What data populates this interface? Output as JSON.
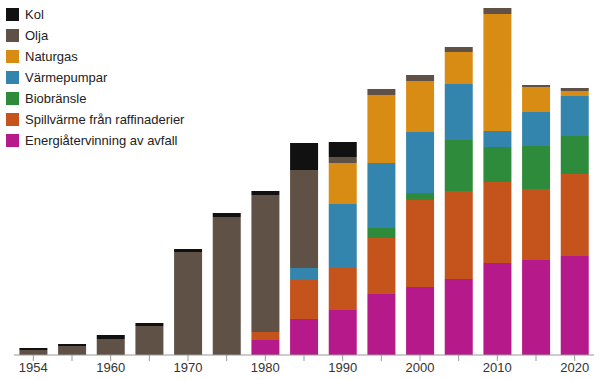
{
  "chart_data": {
    "type": "bar",
    "stacked": true,
    "tick_labels": "x",
    "categories": [
      "1954",
      null,
      "1960",
      null,
      "1970",
      null,
      "1980",
      null,
      "1990",
      null,
      "2000",
      null,
      "2010",
      null,
      "2020"
    ],
    "ylim": [
      0,
      350
    ],
    "legend": "top-left",
    "series": [
      {
        "name": "Kol",
        "color": "#111111",
        "values": [
          2,
          2,
          4,
          3,
          3,
          4,
          4,
          27,
          15,
          0,
          0,
          0,
          0,
          0,
          0
        ]
      },
      {
        "name": "Olja",
        "color": "#5f5145",
        "values": [
          5,
          9,
          16,
          29,
          103,
          138,
          137,
          98,
          6,
          6,
          6,
          5,
          6,
          2,
          3
        ]
      },
      {
        "name": "Naturgas",
        "color": "#d98c14",
        "values": [
          0,
          0,
          0,
          0,
          0,
          0,
          0,
          0,
          41,
          68,
          51,
          32,
          117,
          25,
          5
        ]
      },
      {
        "name": "Värmepumpar",
        "color": "#3385ad",
        "values": [
          0,
          0,
          0,
          0,
          0,
          0,
          0,
          12,
          64,
          65,
          61,
          56,
          16,
          34,
          40
        ]
      },
      {
        "name": "Biobränsle",
        "color": "#2e8b3c",
        "values": [
          0,
          0,
          0,
          0,
          0,
          0,
          0,
          0,
          0,
          10,
          7,
          51,
          35,
          43,
          38
        ]
      },
      {
        "name": "Spillvärme från raffinaderier",
        "color": "#c4541c",
        "values": [
          0,
          0,
          0,
          0,
          0,
          0,
          8,
          39,
          42,
          56,
          87,
          88,
          81,
          71,
          82
        ]
      },
      {
        "name": "Energiåtervinning av avfall",
        "color": "#b5198a",
        "values": [
          0,
          0,
          0,
          0,
          0,
          0,
          15,
          36,
          45,
          61,
          68,
          76,
          92,
          95,
          99
        ]
      }
    ]
  }
}
